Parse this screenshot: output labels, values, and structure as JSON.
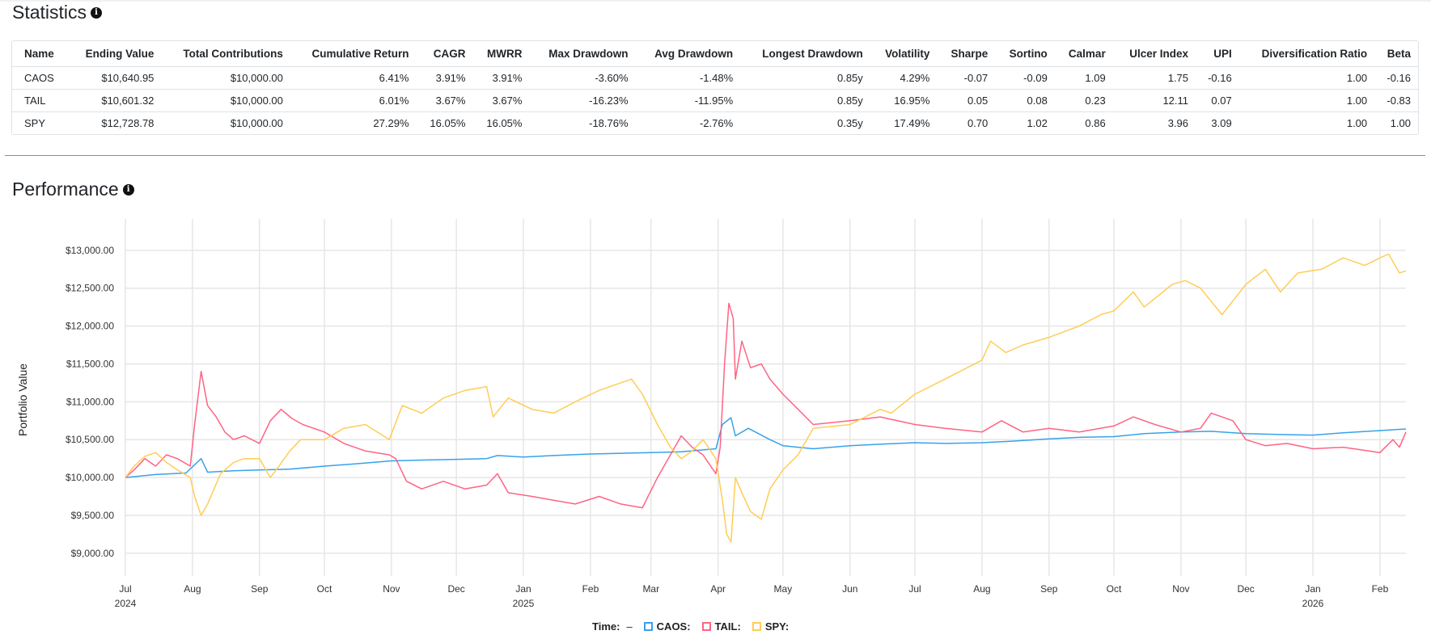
{
  "statistics": {
    "title": "Statistics",
    "info_icon": "info-icon",
    "columns": [
      "Name",
      "Ending Value",
      "Total Contributions",
      "Cumulative Return",
      "CAGR",
      "MWRR",
      "Max Drawdown",
      "Avg Drawdown",
      "Longest Drawdown",
      "Volatility",
      "Sharpe",
      "Sortino",
      "Calmar",
      "Ulcer Index",
      "UPI",
      "Diversification Ratio",
      "Beta"
    ],
    "rows": [
      {
        "name": "CAOS",
        "ending_value": "$10,640.95",
        "total_contributions": "$10,000.00",
        "cumulative_return": "6.41%",
        "cagr": "3.91%",
        "mwrr": "3.91%",
        "max_drawdown": "-3.60%",
        "avg_drawdown": "-1.48%",
        "longest_drawdown": "0.85y",
        "volatility": "4.29%",
        "sharpe": "-0.07",
        "sortino": "-0.09",
        "calmar": "1.09",
        "ulcer_index": "1.75",
        "upi": "-0.16",
        "diversification_ratio": "1.00",
        "beta": "-0.16"
      },
      {
        "name": "TAIL",
        "ending_value": "$10,601.32",
        "total_contributions": "$10,000.00",
        "cumulative_return": "6.01%",
        "cagr": "3.67%",
        "mwrr": "3.67%",
        "max_drawdown": "-16.23%",
        "avg_drawdown": "-11.95%",
        "longest_drawdown": "0.85y",
        "volatility": "16.95%",
        "sharpe": "0.05",
        "sortino": "0.08",
        "calmar": "0.23",
        "ulcer_index": "12.11",
        "upi": "0.07",
        "diversification_ratio": "1.00",
        "beta": "-0.83"
      },
      {
        "name": "SPY",
        "ending_value": "$12,728.78",
        "total_contributions": "$10,000.00",
        "cumulative_return": "27.29%",
        "cagr": "16.05%",
        "mwrr": "16.05%",
        "max_drawdown": "-18.76%",
        "avg_drawdown": "-2.76%",
        "longest_drawdown": "0.35y",
        "volatility": "17.49%",
        "sharpe": "0.70",
        "sortino": "1.02",
        "calmar": "0.86",
        "ulcer_index": "3.96",
        "upi": "3.09",
        "diversification_ratio": "1.00",
        "beta": "1.00"
      }
    ]
  },
  "performance": {
    "title": "Performance",
    "info_icon": "info-icon"
  },
  "legend": {
    "time_label": "Time:",
    "time_value": "–",
    "items": [
      {
        "label": "CAOS:",
        "color": "#36a2eb"
      },
      {
        "label": "TAIL:",
        "color": "#ff6384"
      },
      {
        "label": "SPY:",
        "color": "#ffcd56"
      }
    ]
  },
  "chart_data": {
    "type": "line",
    "title": "",
    "xlabel": "",
    "ylabel": "Portfolio Value",
    "grid": true,
    "xlim": [
      "2024-07-01",
      "2026-02-13"
    ],
    "ylim": [
      8700,
      13350
    ],
    "y_ticks": [
      9000,
      9500,
      10000,
      10500,
      11000,
      11500,
      12000,
      12500,
      13000
    ],
    "y_tick_labels": [
      "$9,000.00",
      "$9,500.00",
      "$10,000.00",
      "$10,500.00",
      "$11,000.00",
      "$11,500.00",
      "$12,000.00",
      "$12,500.00",
      "$13,000.00"
    ],
    "x_ticks": [
      {
        "date": "2024-07-01",
        "label": "Jul",
        "year": "2024"
      },
      {
        "date": "2024-08-01",
        "label": "Aug",
        "year": ""
      },
      {
        "date": "2024-09-01",
        "label": "Sep",
        "year": ""
      },
      {
        "date": "2024-10-01",
        "label": "Oct",
        "year": ""
      },
      {
        "date": "2024-11-01",
        "label": "Nov",
        "year": ""
      },
      {
        "date": "2024-12-01",
        "label": "Dec",
        "year": ""
      },
      {
        "date": "2025-01-01",
        "label": "Jan",
        "year": "2025"
      },
      {
        "date": "2025-02-01",
        "label": "Feb",
        "year": ""
      },
      {
        "date": "2025-03-01",
        "label": "Mar",
        "year": ""
      },
      {
        "date": "2025-04-01",
        "label": "Apr",
        "year": ""
      },
      {
        "date": "2025-05-01",
        "label": "May",
        "year": ""
      },
      {
        "date": "2025-06-01",
        "label": "Jun",
        "year": ""
      },
      {
        "date": "2025-07-01",
        "label": "Jul",
        "year": ""
      },
      {
        "date": "2025-08-01",
        "label": "Aug",
        "year": ""
      },
      {
        "date": "2025-09-01",
        "label": "Sep",
        "year": ""
      },
      {
        "date": "2025-10-01",
        "label": "Oct",
        "year": ""
      },
      {
        "date": "2025-11-01",
        "label": "Nov",
        "year": ""
      },
      {
        "date": "2025-12-01",
        "label": "Dec",
        "year": ""
      },
      {
        "date": "2026-01-01",
        "label": "Jan",
        "year": "2026"
      },
      {
        "date": "2026-02-01",
        "label": "Feb",
        "year": ""
      }
    ],
    "series": [
      {
        "name": "CAOS",
        "color": "#36a2eb",
        "points": [
          [
            "2024-07-01",
            10000
          ],
          [
            "2024-07-15",
            10040
          ],
          [
            "2024-07-29",
            10060
          ],
          [
            "2024-08-05",
            10250
          ],
          [
            "2024-08-08",
            10070
          ],
          [
            "2024-08-20",
            10090
          ],
          [
            "2024-09-01",
            10100
          ],
          [
            "2024-09-15",
            10110
          ],
          [
            "2024-10-01",
            10150
          ],
          [
            "2024-10-15",
            10180
          ],
          [
            "2024-11-01",
            10220
          ],
          [
            "2024-11-15",
            10230
          ],
          [
            "2024-12-01",
            10240
          ],
          [
            "2024-12-15",
            10250
          ],
          [
            "2024-12-20",
            10290
          ],
          [
            "2025-01-01",
            10270
          ],
          [
            "2025-01-15",
            10290
          ],
          [
            "2025-02-01",
            10310
          ],
          [
            "2025-02-15",
            10320
          ],
          [
            "2025-03-01",
            10330
          ],
          [
            "2025-03-15",
            10340
          ],
          [
            "2025-03-31",
            10380
          ],
          [
            "2025-04-03",
            10700
          ],
          [
            "2025-04-07",
            10790
          ],
          [
            "2025-04-09",
            10550
          ],
          [
            "2025-04-15",
            10650
          ],
          [
            "2025-04-25",
            10500
          ],
          [
            "2025-05-01",
            10420
          ],
          [
            "2025-05-15",
            10380
          ],
          [
            "2025-06-01",
            10420
          ],
          [
            "2025-06-15",
            10440
          ],
          [
            "2025-07-01",
            10460
          ],
          [
            "2025-07-15",
            10450
          ],
          [
            "2025-08-01",
            10460
          ],
          [
            "2025-08-15",
            10480
          ],
          [
            "2025-09-01",
            10510
          ],
          [
            "2025-09-15",
            10530
          ],
          [
            "2025-10-01",
            10540
          ],
          [
            "2025-10-15",
            10580
          ],
          [
            "2025-11-01",
            10600
          ],
          [
            "2025-11-15",
            10610
          ],
          [
            "2025-12-01",
            10580
          ],
          [
            "2025-12-15",
            10570
          ],
          [
            "2026-01-01",
            10560
          ],
          [
            "2026-01-15",
            10590
          ],
          [
            "2026-02-01",
            10620
          ],
          [
            "2026-02-13",
            10640.95
          ]
        ]
      },
      {
        "name": "TAIL",
        "color": "#ff6384",
        "points": [
          [
            "2024-07-01",
            10000
          ],
          [
            "2024-07-05",
            10100
          ],
          [
            "2024-07-10",
            10250
          ],
          [
            "2024-07-15",
            10150
          ],
          [
            "2024-07-20",
            10300
          ],
          [
            "2024-07-25",
            10250
          ],
          [
            "2024-07-31",
            10150
          ],
          [
            "2024-08-02",
            10700
          ],
          [
            "2024-08-05",
            11400
          ],
          [
            "2024-08-08",
            10950
          ],
          [
            "2024-08-12",
            10800
          ],
          [
            "2024-08-16",
            10600
          ],
          [
            "2024-08-20",
            10500
          ],
          [
            "2024-08-25",
            10550
          ],
          [
            "2024-09-01",
            10450
          ],
          [
            "2024-09-06",
            10750
          ],
          [
            "2024-09-11",
            10900
          ],
          [
            "2024-09-16",
            10780
          ],
          [
            "2024-09-21",
            10700
          ],
          [
            "2024-10-01",
            10600
          ],
          [
            "2024-10-10",
            10450
          ],
          [
            "2024-10-20",
            10350
          ],
          [
            "2024-10-31",
            10300
          ],
          [
            "2024-11-03",
            10250
          ],
          [
            "2024-11-08",
            9950
          ],
          [
            "2024-11-15",
            9850
          ],
          [
            "2024-11-25",
            9950
          ],
          [
            "2024-12-05",
            9850
          ],
          [
            "2024-12-15",
            9900
          ],
          [
            "2024-12-20",
            10050
          ],
          [
            "2024-12-25",
            9800
          ],
          [
            "2025-01-05",
            9750
          ],
          [
            "2025-01-15",
            9700
          ],
          [
            "2025-01-25",
            9650
          ],
          [
            "2025-02-05",
            9750
          ],
          [
            "2025-02-15",
            9650
          ],
          [
            "2025-02-25",
            9600
          ],
          [
            "2025-03-04",
            10000
          ],
          [
            "2025-03-10",
            10300
          ],
          [
            "2025-03-15",
            10550
          ],
          [
            "2025-03-20",
            10400
          ],
          [
            "2025-03-25",
            10300
          ],
          [
            "2025-03-31",
            10050
          ],
          [
            "2025-04-02",
            10400
          ],
          [
            "2025-04-04",
            11500
          ],
          [
            "2025-04-06",
            12300
          ],
          [
            "2025-04-08",
            12100
          ],
          [
            "2025-04-09",
            11300
          ],
          [
            "2025-04-12",
            11800
          ],
          [
            "2025-04-16",
            11450
          ],
          [
            "2025-04-21",
            11500
          ],
          [
            "2025-04-25",
            11300
          ],
          [
            "2025-05-01",
            11100
          ],
          [
            "2025-05-08",
            10900
          ],
          [
            "2025-05-15",
            10700
          ],
          [
            "2025-06-01",
            10750
          ],
          [
            "2025-06-15",
            10800
          ],
          [
            "2025-07-01",
            10700
          ],
          [
            "2025-07-15",
            10650
          ],
          [
            "2025-08-01",
            10600
          ],
          [
            "2025-08-10",
            10750
          ],
          [
            "2025-08-20",
            10600
          ],
          [
            "2025-09-01",
            10650
          ],
          [
            "2025-09-15",
            10600
          ],
          [
            "2025-10-01",
            10680
          ],
          [
            "2025-10-10",
            10800
          ],
          [
            "2025-10-20",
            10700
          ],
          [
            "2025-11-01",
            10600
          ],
          [
            "2025-11-10",
            10650
          ],
          [
            "2025-11-15",
            10850
          ],
          [
            "2025-11-25",
            10750
          ],
          [
            "2025-12-01",
            10500
          ],
          [
            "2025-12-10",
            10420
          ],
          [
            "2025-12-20",
            10450
          ],
          [
            "2026-01-01",
            10380
          ],
          [
            "2026-01-15",
            10400
          ],
          [
            "2026-02-01",
            10330
          ],
          [
            "2026-02-07",
            10500
          ],
          [
            "2026-02-10",
            10400
          ],
          [
            "2026-02-13",
            10601.32
          ]
        ]
      },
      {
        "name": "SPY",
        "color": "#ffcd56",
        "points": [
          [
            "2024-07-01",
            10000
          ],
          [
            "2024-07-05",
            10150
          ],
          [
            "2024-07-10",
            10280
          ],
          [
            "2024-07-15",
            10330
          ],
          [
            "2024-07-20",
            10200
          ],
          [
            "2024-07-25",
            10100
          ],
          [
            "2024-07-31",
            10000
          ],
          [
            "2024-08-02",
            9750
          ],
          [
            "2024-08-05",
            9500
          ],
          [
            "2024-08-08",
            9650
          ],
          [
            "2024-08-14",
            10050
          ],
          [
            "2024-08-20",
            10200
          ],
          [
            "2024-08-25",
            10250
          ],
          [
            "2024-09-01",
            10250
          ],
          [
            "2024-09-06",
            10000
          ],
          [
            "2024-09-10",
            10150
          ],
          [
            "2024-09-15",
            10350
          ],
          [
            "2024-09-20",
            10500
          ],
          [
            "2024-10-01",
            10500
          ],
          [
            "2024-10-10",
            10650
          ],
          [
            "2024-10-20",
            10700
          ],
          [
            "2024-10-31",
            10500
          ],
          [
            "2024-11-06",
            10950
          ],
          [
            "2024-11-15",
            10850
          ],
          [
            "2024-11-25",
            11050
          ],
          [
            "2024-12-05",
            11150
          ],
          [
            "2024-12-15",
            11200
          ],
          [
            "2024-12-18",
            10800
          ],
          [
            "2024-12-25",
            11050
          ],
          [
            "2025-01-05",
            10900
          ],
          [
            "2025-01-15",
            10850
          ],
          [
            "2025-01-25",
            11000
          ],
          [
            "2025-02-05",
            11150
          ],
          [
            "2025-02-15",
            11250
          ],
          [
            "2025-02-20",
            11300
          ],
          [
            "2025-02-25",
            11100
          ],
          [
            "2025-03-04",
            10700
          ],
          [
            "2025-03-10",
            10400
          ],
          [
            "2025-03-15",
            10250
          ],
          [
            "2025-03-20",
            10350
          ],
          [
            "2025-03-25",
            10500
          ],
          [
            "2025-03-31",
            10250
          ],
          [
            "2025-04-03",
            9700
          ],
          [
            "2025-04-05",
            9250
          ],
          [
            "2025-04-07",
            9150
          ],
          [
            "2025-04-09",
            10000
          ],
          [
            "2025-04-12",
            9800
          ],
          [
            "2025-04-16",
            9550
          ],
          [
            "2025-04-21",
            9450
          ],
          [
            "2025-04-25",
            9850
          ],
          [
            "2025-05-01",
            10100
          ],
          [
            "2025-05-08",
            10300
          ],
          [
            "2025-05-15",
            10650
          ],
          [
            "2025-06-01",
            10700
          ],
          [
            "2025-06-15",
            10900
          ],
          [
            "2025-06-20",
            10850
          ],
          [
            "2025-07-01",
            11100
          ],
          [
            "2025-07-15",
            11300
          ],
          [
            "2025-08-01",
            11550
          ],
          [
            "2025-08-05",
            11800
          ],
          [
            "2025-08-12",
            11650
          ],
          [
            "2025-08-20",
            11750
          ],
          [
            "2025-09-01",
            11850
          ],
          [
            "2025-09-15",
            12000
          ],
          [
            "2025-09-25",
            12150
          ],
          [
            "2025-10-01",
            12200
          ],
          [
            "2025-10-10",
            12450
          ],
          [
            "2025-10-15",
            12250
          ],
          [
            "2025-10-28",
            12550
          ],
          [
            "2025-11-03",
            12600
          ],
          [
            "2025-11-10",
            12500
          ],
          [
            "2025-11-20",
            12150
          ],
          [
            "2025-12-01",
            12550
          ],
          [
            "2025-12-10",
            12750
          ],
          [
            "2025-12-17",
            12450
          ],
          [
            "2025-12-25",
            12700
          ],
          [
            "2026-01-05",
            12750
          ],
          [
            "2026-01-15",
            12900
          ],
          [
            "2026-01-25",
            12800
          ],
          [
            "2026-02-01",
            12900
          ],
          [
            "2026-02-05",
            12950
          ],
          [
            "2026-02-10",
            12700
          ],
          [
            "2026-02-13",
            12728.78
          ]
        ]
      }
    ]
  }
}
